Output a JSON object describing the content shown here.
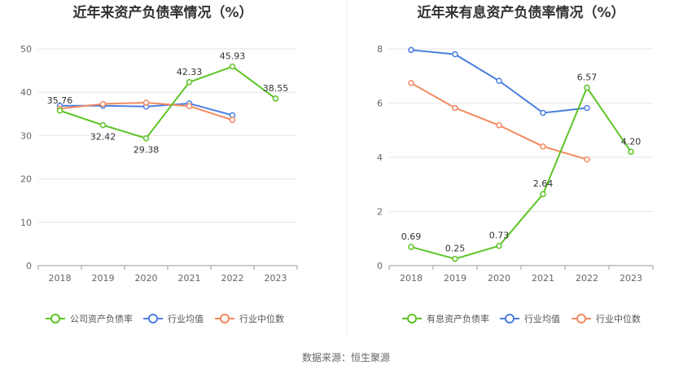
{
  "source": "数据来源：恒生聚源",
  "colors": {
    "primary": "#5cc424",
    "avg": "#4a7fe0",
    "median": "#f28a5e",
    "grid": "#e6e6e6",
    "axis": "#999999"
  },
  "chart_data": [
    {
      "type": "line",
      "title": "近年来资产负债率情况（%）",
      "xlabel": "",
      "ylabel": "",
      "categories": [
        "2018",
        "2019",
        "2020",
        "2021",
        "2022",
        "2023"
      ],
      "ylim": [
        0,
        50
      ],
      "yticks": [
        0,
        10,
        20,
        30,
        40,
        50
      ],
      "grid": true,
      "legend": "bottom",
      "series": [
        {
          "name": "公司资产负债率",
          "color": "#5cc424",
          "labeled": true,
          "values": [
            35.76,
            32.42,
            29.38,
            42.33,
            45.93,
            38.55
          ],
          "labels": [
            "35.76",
            "32.42",
            "29.38",
            "42.33",
            "45.93",
            "38.55"
          ],
          "label_pos": [
            "above",
            "below",
            "below",
            "above",
            "above",
            "above"
          ]
        },
        {
          "name": "行业均值",
          "color": "#4a7fe0",
          "labeled": false,
          "values": [
            36.9,
            36.9,
            36.7,
            37.4,
            34.7,
            null
          ]
        },
        {
          "name": "行业中位数",
          "color": "#f28a5e",
          "labeled": false,
          "values": [
            36.2,
            37.3,
            37.6,
            36.8,
            33.6,
            null
          ]
        }
      ]
    },
    {
      "type": "line",
      "title": "近年来有息资产负债率情况（%）",
      "xlabel": "",
      "ylabel": "",
      "categories": [
        "2018",
        "2019",
        "2020",
        "2021",
        "2022",
        "2023"
      ],
      "ylim": [
        0,
        8
      ],
      "yticks": [
        0,
        2,
        4,
        6,
        8
      ],
      "grid": true,
      "legend": "bottom",
      "series": [
        {
          "name": "有息资产负债率",
          "color": "#5cc424",
          "labeled": true,
          "values": [
            0.69,
            0.25,
            0.73,
            2.64,
            6.57,
            4.2
          ],
          "labels": [
            "0.69",
            "0.25",
            "0.73",
            "2.64",
            "6.57",
            "4.20"
          ],
          "label_pos": [
            "above",
            "above",
            "above",
            "above",
            "above",
            "above"
          ]
        },
        {
          "name": "行业均值",
          "color": "#4a7fe0",
          "labeled": false,
          "values": [
            7.96,
            7.8,
            6.82,
            5.64,
            5.82,
            null
          ]
        },
        {
          "name": "行业中位数",
          "color": "#f28a5e",
          "labeled": false,
          "values": [
            6.74,
            5.82,
            5.18,
            4.4,
            3.92,
            null
          ]
        }
      ]
    }
  ]
}
